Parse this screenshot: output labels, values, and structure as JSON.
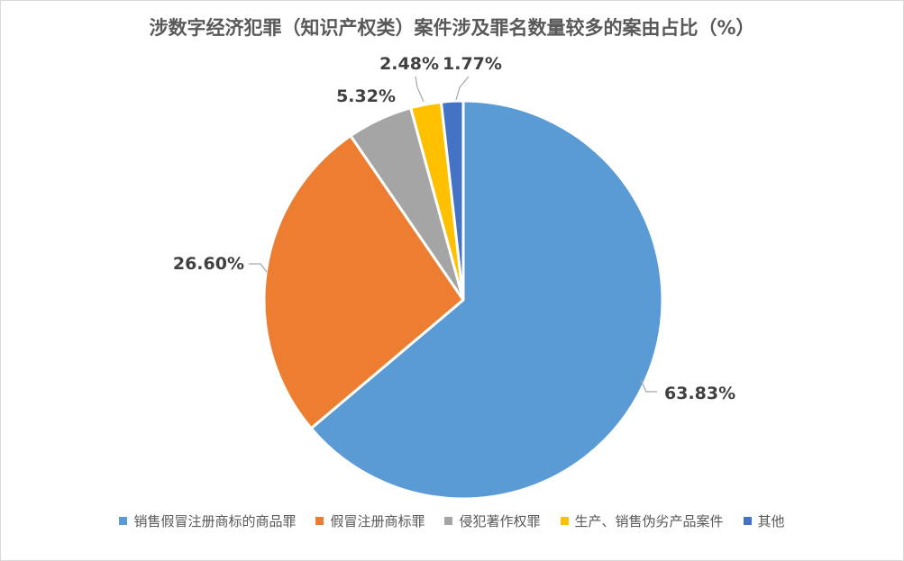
{
  "chart_data": {
    "type": "pie",
    "title": "涉数字经济犯罪（知识产权类）案件涉及罪名数量较多的案由占比（%）",
    "categories": [
      "销售假冒注册商标的商品罪",
      "假冒注册商标罪",
      "侵犯著作权罪",
      "生产、销售伪劣产品案件",
      "其他"
    ],
    "values": [
      63.83,
      26.6,
      5.32,
      2.48,
      1.77
    ],
    "data_labels": [
      "63.83%",
      "26.60%",
      "5.32%",
      "2.48%",
      "1.77%"
    ],
    "colors": [
      "#5b9bd5",
      "#ed7d31",
      "#a5a5a5",
      "#ffc000",
      "#4472c4"
    ],
    "legend_position": "bottom"
  }
}
